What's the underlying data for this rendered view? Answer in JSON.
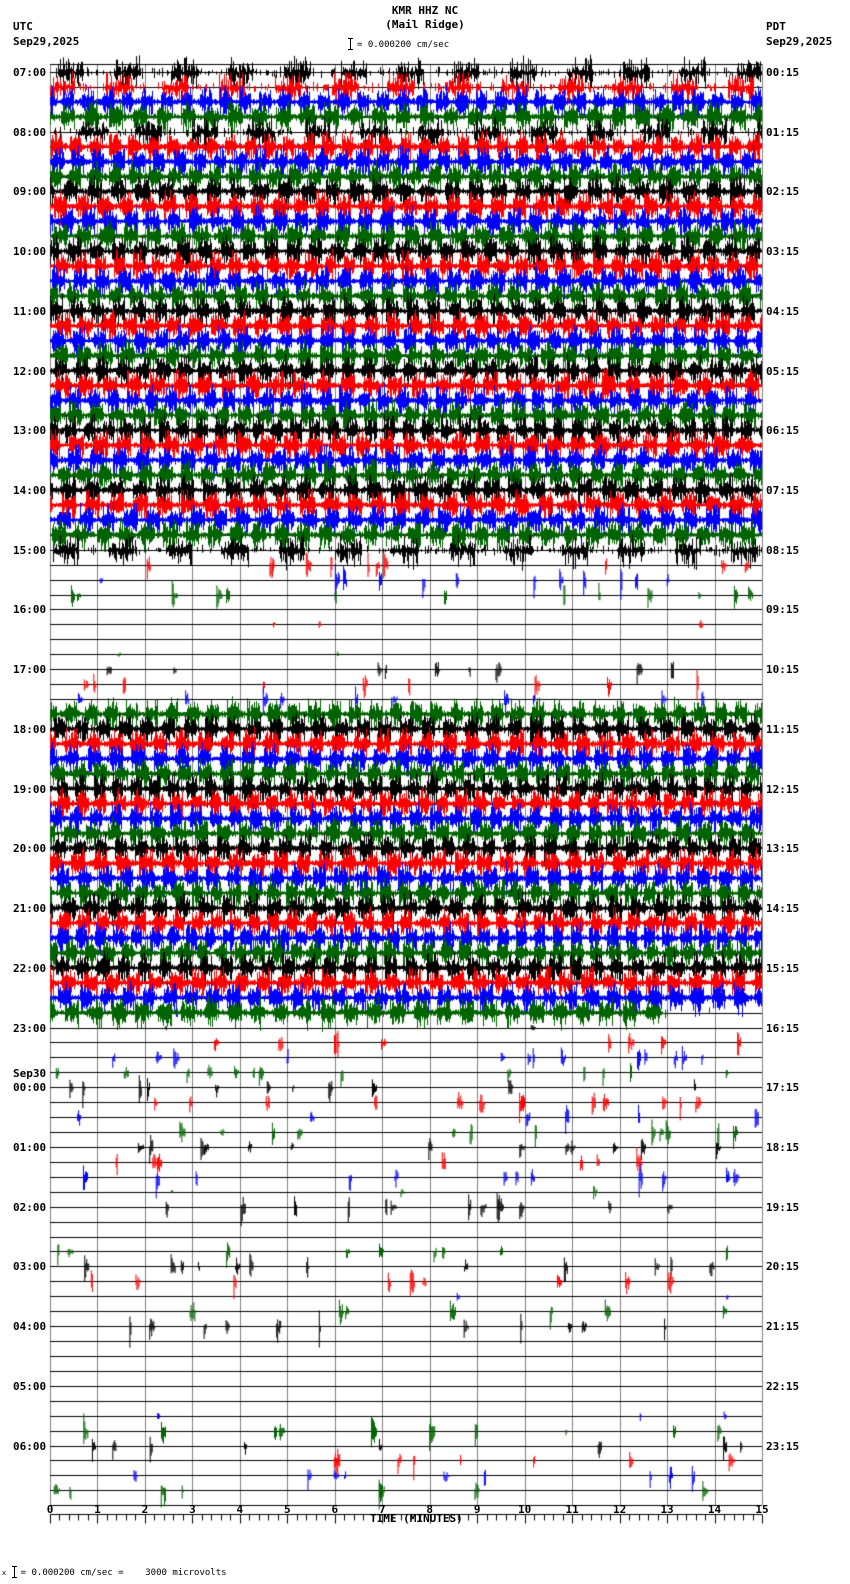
{
  "header": {
    "station": "KMR HHZ NC",
    "location": "(Mail Ridge)",
    "scale_text": "= 0.000200 cm/sec",
    "left_zone": "UTC",
    "left_date": "Sep29,2025",
    "right_zone": "PDT",
    "right_date": "Sep29,2025"
  },
  "footer": {
    "scale_text": "= 0.000200 cm/sec =    3000 microvolts",
    "scale_prefix": "x"
  },
  "colors": {
    "trace_cycle": [
      "#000000",
      "#ff0000",
      "#0000ff",
      "#006400"
    ],
    "grid_h": "#000000",
    "grid_v": "#808080"
  },
  "chart_data": {
    "type": "helicorder",
    "title": "KMR HHZ NC (Mail Ridge)",
    "xlabel": "TIME (MINUTES)",
    "ylabel": "",
    "xlim": [
      0,
      15
    ],
    "x_ticks": [
      "0",
      "1",
      "2",
      "3",
      "4",
      "5",
      "6",
      "7",
      "8",
      "9",
      "10",
      "11",
      "12",
      "13",
      "14",
      "15"
    ],
    "minor_tick_interval_min": 0.2,
    "rows_per_hour": 4,
    "row_minutes": 15,
    "num_rows": 96,
    "left_labels": [
      {
        "row": 0,
        "text": "07:00"
      },
      {
        "row": 4,
        "text": "08:00"
      },
      {
        "row": 8,
        "text": "09:00"
      },
      {
        "row": 12,
        "text": "10:00"
      },
      {
        "row": 16,
        "text": "11:00"
      },
      {
        "row": 20,
        "text": "12:00"
      },
      {
        "row": 24,
        "text": "13:00"
      },
      {
        "row": 28,
        "text": "14:00"
      },
      {
        "row": 32,
        "text": "15:00"
      },
      {
        "row": 36,
        "text": "16:00"
      },
      {
        "row": 40,
        "text": "17:00"
      },
      {
        "row": 44,
        "text": "18:00"
      },
      {
        "row": 48,
        "text": "19:00"
      },
      {
        "row": 52,
        "text": "20:00"
      },
      {
        "row": 56,
        "text": "21:00"
      },
      {
        "row": 60,
        "text": "22:00"
      },
      {
        "row": 64,
        "text": "23:00"
      },
      {
        "row": 68,
        "text": "00:00",
        "date": "Sep30"
      },
      {
        "row": 72,
        "text": "01:00"
      },
      {
        "row": 76,
        "text": "02:00"
      },
      {
        "row": 80,
        "text": "03:00"
      },
      {
        "row": 84,
        "text": "04:00"
      },
      {
        "row": 88,
        "text": "05:00"
      },
      {
        "row": 92,
        "text": "06:00"
      }
    ],
    "right_labels": [
      {
        "row": 0,
        "text": "00:15"
      },
      {
        "row": 4,
        "text": "01:15"
      },
      {
        "row": 8,
        "text": "02:15"
      },
      {
        "row": 12,
        "text": "03:15"
      },
      {
        "row": 16,
        "text": "04:15"
      },
      {
        "row": 20,
        "text": "05:15"
      },
      {
        "row": 24,
        "text": "06:15"
      },
      {
        "row": 28,
        "text": "07:15"
      },
      {
        "row": 32,
        "text": "08:15"
      },
      {
        "row": 36,
        "text": "09:15"
      },
      {
        "row": 40,
        "text": "10:15"
      },
      {
        "row": 44,
        "text": "11:15"
      },
      {
        "row": 48,
        "text": "12:15"
      },
      {
        "row": 52,
        "text": "13:15"
      },
      {
        "row": 56,
        "text": "14:15"
      },
      {
        "row": 60,
        "text": "15:15"
      },
      {
        "row": 64,
        "text": "16:15"
      },
      {
        "row": 68,
        "text": "17:15"
      },
      {
        "row": 72,
        "text": "18:15"
      },
      {
        "row": 76,
        "text": "19:15"
      },
      {
        "row": 80,
        "text": "20:15"
      },
      {
        "row": 84,
        "text": "21:15"
      },
      {
        "row": 88,
        "text": "22:15"
      },
      {
        "row": 92,
        "text": "23:15"
      }
    ],
    "row_activity_note": "activity level per row: 0=quiet, 1=very sparse, 2=sparse events, 3=moderate, 4=dense tremor bursts",
    "row_activity": [
      3,
      3,
      4,
      4,
      3,
      4,
      4,
      4,
      4,
      4,
      4,
      4,
      4,
      4,
      4,
      4,
      4,
      4,
      4,
      4,
      4,
      4,
      4,
      4,
      4,
      4,
      4,
      4,
      4,
      4,
      4,
      4,
      3,
      2,
      2,
      2,
      0,
      1,
      0,
      1,
      2,
      2,
      2,
      4,
      4,
      4,
      4,
      4,
      4,
      4,
      4,
      4,
      4,
      4,
      4,
      4,
      4,
      4,
      4,
      4,
      4,
      4,
      4,
      4,
      1,
      2,
      2,
      2,
      2,
      2,
      2,
      2,
      2,
      2,
      2,
      1,
      2,
      0,
      0,
      2,
      2,
      2,
      1,
      2,
      2,
      0,
      0,
      0,
      0,
      0,
      1,
      2,
      2,
      2,
      2,
      2
    ],
    "dense_end_minute": {
      "63": 12.9,
      "43_start": 0.0,
      "36_events": [
        4.7,
        5.7,
        7.0,
        7.9
      ]
    }
  }
}
